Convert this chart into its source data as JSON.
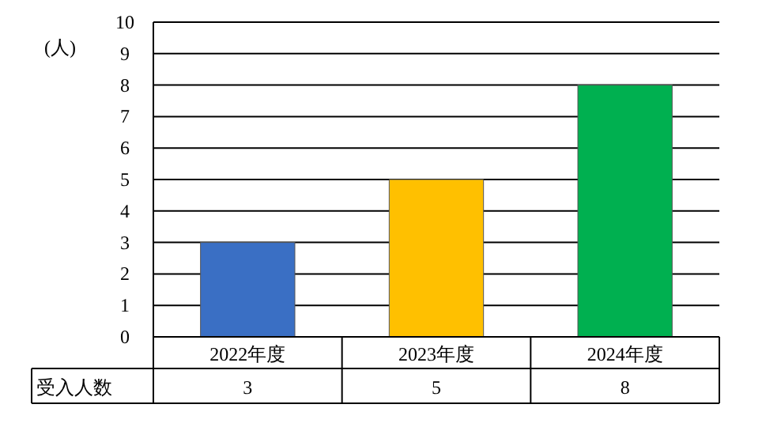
{
  "chart_data": {
    "type": "bar",
    "ylabel": "(人)",
    "categories": [
      "2022年度",
      "2023年度",
      "2024年度"
    ],
    "series": [
      {
        "name": "受入人数",
        "values": [
          3,
          5,
          8
        ],
        "colors": [
          "#3a6fc4",
          "#ffc000",
          "#00b050"
        ]
      }
    ],
    "ylim": [
      0,
      10
    ],
    "yticks": [
      0,
      1,
      2,
      3,
      4,
      5,
      6,
      7,
      8,
      9,
      10
    ],
    "grid": "y",
    "data_labels": true
  }
}
